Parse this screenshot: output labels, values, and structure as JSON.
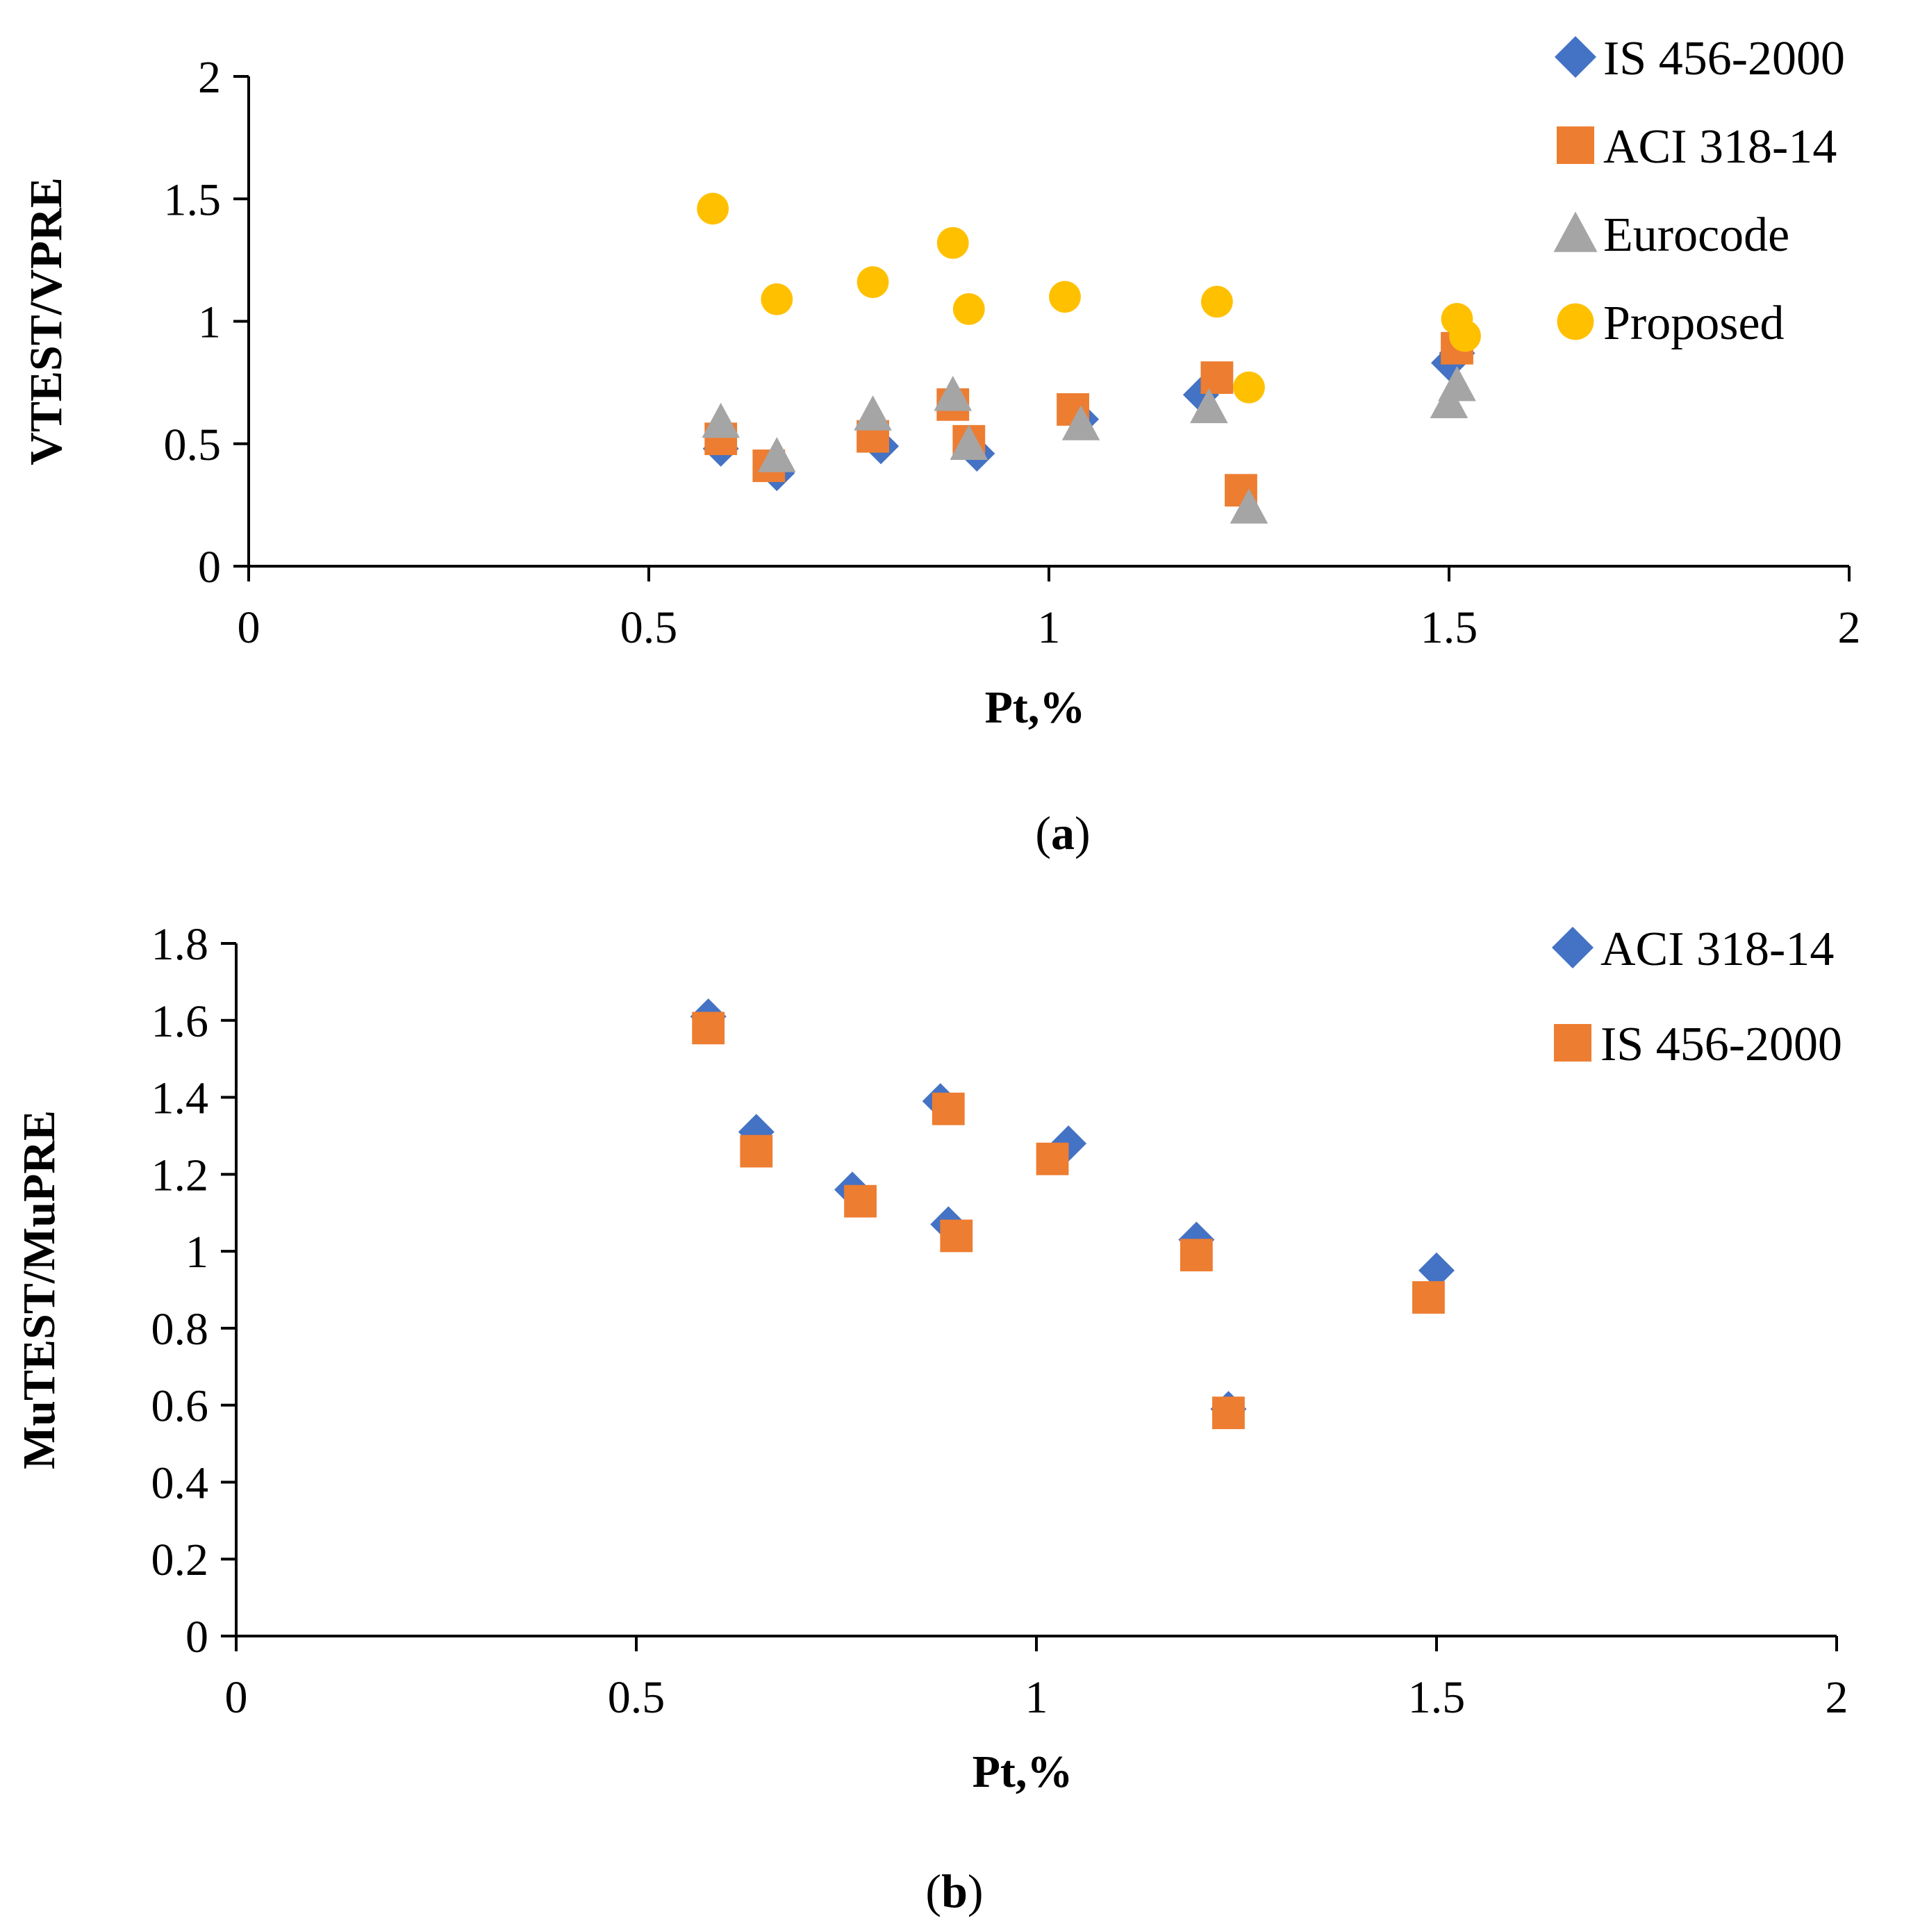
{
  "chart_data": [
    {
      "type": "scatter",
      "caption_letter": "a",
      "xlabel": "Pt,%",
      "ylabel": "VTEST/VPRE",
      "xlim": [
        0,
        2
      ],
      "ylim": [
        0,
        2
      ],
      "x_ticks": [
        "0",
        "0.5",
        "1",
        "1.5",
        "2"
      ],
      "y_ticks": [
        "0",
        "0.5",
        "1",
        "1.5",
        "2"
      ],
      "legend_position": "top-right",
      "series": [
        {
          "name": "IS 456-2000",
          "marker": "diamond",
          "color": "#4472C4",
          "points": [
            [
              0.59,
              0.48
            ],
            [
              0.66,
              0.38
            ],
            [
              0.79,
              0.49
            ],
            [
              0.91,
              0.46
            ],
            [
              1.04,
              0.6
            ],
            [
              1.19,
              0.7
            ],
            [
              1.51,
              0.87
            ],
            [
              1.5,
              0.83
            ]
          ]
        },
        {
          "name": "ACI 318-14",
          "marker": "square",
          "color": "#ED7D31",
          "points": [
            [
              0.59,
              0.52
            ],
            [
              0.65,
              0.41
            ],
            [
              0.78,
              0.53
            ],
            [
              0.88,
              0.66
            ],
            [
              0.9,
              0.51
            ],
            [
              1.03,
              0.64
            ],
            [
              1.21,
              0.77
            ],
            [
              1.24,
              0.31
            ],
            [
              1.51,
              0.89
            ]
          ]
        },
        {
          "name": "Eurocode",
          "marker": "triangle",
          "color": "#A5A5A5",
          "points": [
            [
              0.59,
              0.59
            ],
            [
              0.66,
              0.45
            ],
            [
              0.78,
              0.62
            ],
            [
              0.88,
              0.7
            ],
            [
              0.9,
              0.5
            ],
            [
              1.04,
              0.58
            ],
            [
              1.2,
              0.65
            ],
            [
              1.25,
              0.24
            ],
            [
              1.5,
              0.67
            ],
            [
              1.51,
              0.74
            ]
          ]
        },
        {
          "name": "Proposed",
          "marker": "circle",
          "color": "#FFC000",
          "points": [
            [
              0.58,
              1.46
            ],
            [
              0.66,
              1.09
            ],
            [
              0.78,
              1.16
            ],
            [
              0.88,
              1.32
            ],
            [
              0.9,
              1.05
            ],
            [
              1.02,
              1.1
            ],
            [
              1.21,
              1.08
            ],
            [
              1.25,
              0.73
            ],
            [
              1.51,
              1.01
            ],
            [
              1.52,
              0.94
            ]
          ]
        }
      ]
    },
    {
      "type": "scatter",
      "caption_letter": "b",
      "xlabel": "Pt,%",
      "ylabel": "MuTEST/MuPRE",
      "xlim": [
        0,
        2
      ],
      "ylim": [
        0,
        1.8
      ],
      "x_ticks": [
        "0",
        "0.5",
        "1",
        "1.5",
        "2"
      ],
      "y_ticks": [
        "0",
        "0.2",
        "0.4",
        "0.6",
        "0.8",
        "1",
        "1.2",
        "1.4",
        "1.6",
        "1.8"
      ],
      "legend_position": "top-right",
      "series": [
        {
          "name": "ACI 318-14",
          "marker": "diamond",
          "color": "#4472C4",
          "points": [
            [
              0.59,
              1.61
            ],
            [
              0.65,
              1.31
            ],
            [
              0.77,
              1.16
            ],
            [
              0.88,
              1.39
            ],
            [
              0.89,
              1.07
            ],
            [
              1.04,
              1.28
            ],
            [
              1.2,
              1.03
            ],
            [
              1.24,
              0.59
            ],
            [
              1.5,
              0.95
            ]
          ]
        },
        {
          "name": "IS 456-2000",
          "marker": "square",
          "color": "#ED7D31",
          "points": [
            [
              0.59,
              1.58
            ],
            [
              0.65,
              1.26
            ],
            [
              0.78,
              1.13
            ],
            [
              0.89,
              1.37
            ],
            [
              0.9,
              1.04
            ],
            [
              1.02,
              1.24
            ],
            [
              1.2,
              0.99
            ],
            [
              1.24,
              0.58
            ],
            [
              1.49,
              0.88
            ]
          ]
        }
      ]
    }
  ]
}
